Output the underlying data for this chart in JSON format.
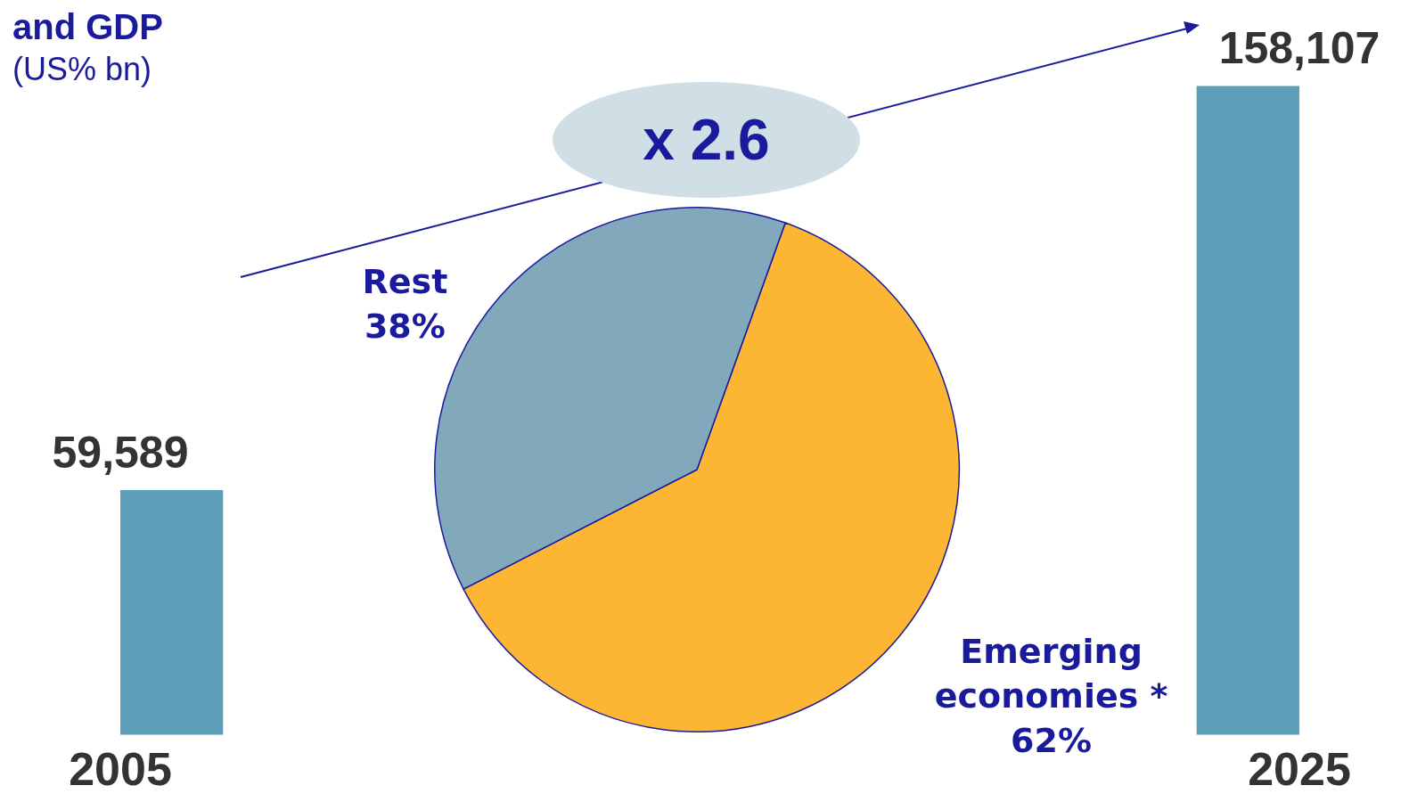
{
  "chart_data": [
    {
      "type": "bar",
      "title": "and GDP",
      "subtitle": "(US% bn)",
      "categories": [
        "2005",
        "2025"
      ],
      "values": [
        59589,
        158107
      ],
      "value_labels": [
        "59,589",
        "158,107"
      ],
      "color": "#5f9eb8",
      "annotations": [
        "x 2.6"
      ]
    },
    {
      "type": "pie",
      "categories": [
        "Emerging economies *",
        "Rest"
      ],
      "values": [
        62,
        38
      ],
      "value_labels": [
        "62%",
        "38%"
      ],
      "colors": [
        "#fdb633",
        "#81a9bb"
      ]
    }
  ]
}
